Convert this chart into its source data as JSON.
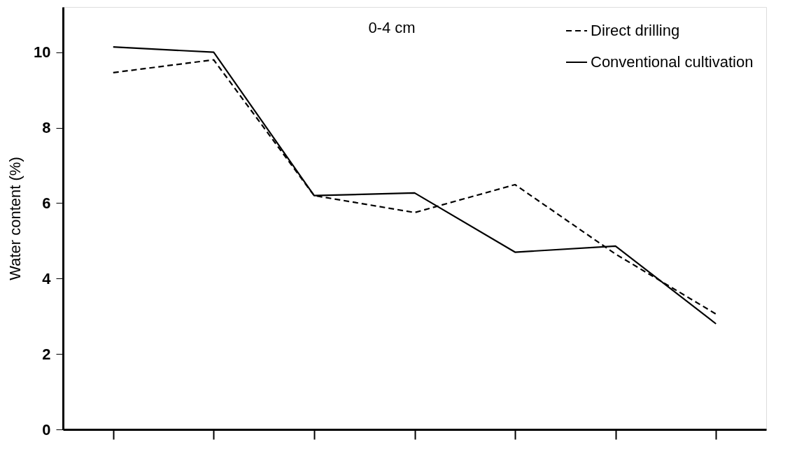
{
  "chart_data": {
    "type": "line",
    "ylabel": "Water content (%)",
    "annotations": [
      "0-4 cm"
    ],
    "categories": [
      null,
      null,
      null,
      null,
      null,
      null,
      null
    ],
    "series": [
      {
        "name": "Direct drilling",
        "color": "#000000",
        "line_style": "dashed",
        "values": [
          9.46,
          9.8,
          6.2,
          5.75,
          6.49,
          4.65,
          3.06
        ]
      },
      {
        "name": "Conventional cultivation",
        "color": "#000000",
        "line_style": "solid",
        "values": [
          10.14,
          10.0,
          6.2,
          6.27,
          4.7,
          4.86,
          2.8
        ]
      }
    ],
    "ylim": [
      0,
      11.2
    ],
    "yticks": [
      0,
      2,
      4,
      6,
      8,
      10
    ],
    "grid": false,
    "legend": "top right",
    "marker": "none"
  }
}
